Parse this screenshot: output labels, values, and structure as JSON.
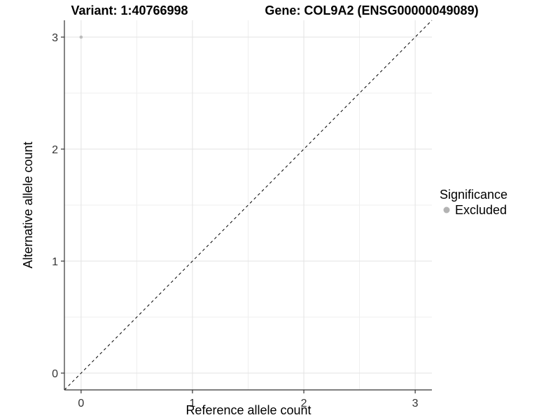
{
  "chart_data": {
    "type": "scatter",
    "title_variant": "Variant: 1:40766998",
    "title_gene": "Gene: COL9A2 (ENSG00000049089)",
    "xlabel": "Reference allele count",
    "ylabel": "Alternative allele count",
    "x_ticks": [
      0,
      1,
      2,
      3
    ],
    "y_ticks": [
      0,
      1,
      2,
      3
    ],
    "minor_x": [
      0.5,
      1.5,
      2.5
    ],
    "minor_y": [
      0.5,
      1.5,
      2.5
    ],
    "xlim": [
      -0.15,
      3.15
    ],
    "ylim": [
      -0.15,
      3.15
    ],
    "grid": true,
    "points": [
      {
        "x": 0,
        "y": 3,
        "significance": "Excluded"
      }
    ],
    "reference_line": {
      "style": "dashed",
      "from": [
        -0.15,
        -0.15
      ],
      "to": [
        3.15,
        3.15
      ]
    },
    "legend": {
      "title": "Significance",
      "position": "right",
      "entries": [
        {
          "label": "Excluded",
          "color": "#bcbcbc"
        }
      ]
    },
    "colors": {
      "background": "#ffffff",
      "grid_major": "#e3e3e3",
      "grid_minor": "#efefef",
      "axis_line": "#333333",
      "tick_mark": "#333333",
      "tick_label": "#333333",
      "point": "#bcbcbc",
      "legend_point": "#b3b3b3",
      "reference_line": "#000000"
    }
  }
}
